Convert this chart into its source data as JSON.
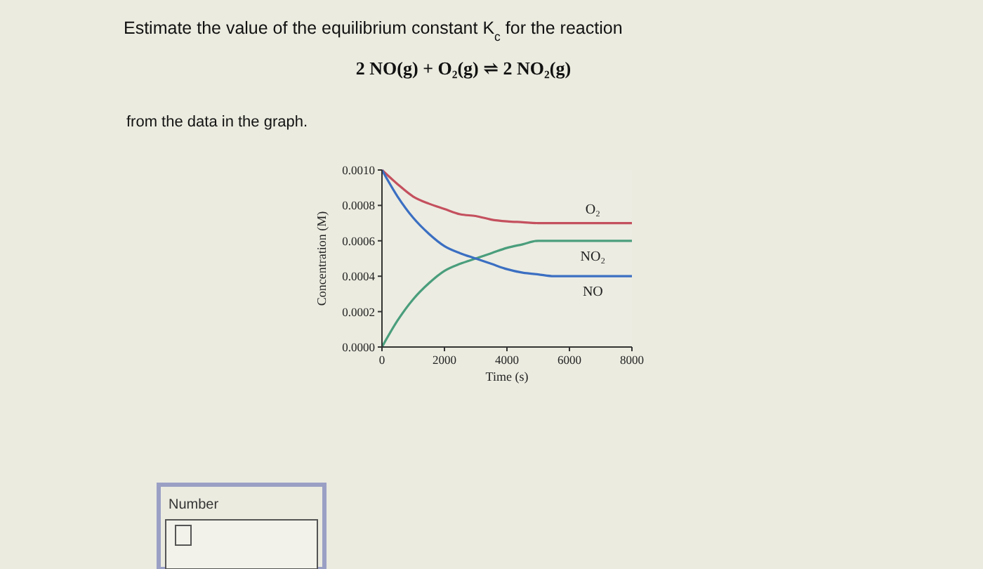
{
  "chart_data": {
    "type": "line",
    "title": "Estimate the value of the equilibrium constant K$_{c}$ for the reaction",
    "subtitle": "2 NO(g) + O₂(g) ⇌ 2 NO₂(g)",
    "xlabel": "Time (s)",
    "ylabel": "Concentration (M)",
    "x": [
      0,
      500,
      1000,
      1500,
      2000,
      2500,
      3000,
      3500,
      4000,
      4500,
      5000,
      5500,
      6000,
      7000,
      8000
    ],
    "series": [
      {
        "name": "O₂",
        "color": "#c4505e",
        "values": [
          0.001,
          0.00092,
          0.00085,
          0.00081,
          0.00078,
          0.00075,
          0.00074,
          0.00072,
          0.00071,
          0.000705,
          0.0007,
          0.0007,
          0.0007,
          0.0007,
          0.0007
        ]
      },
      {
        "name": "NO₂",
        "color": "#4a9e7c",
        "values": [
          0,
          0.00015,
          0.00027,
          0.00036,
          0.00043,
          0.00047,
          0.0005,
          0.00053,
          0.00056,
          0.00058,
          0.0006,
          0.0006,
          0.0006,
          0.0006,
          0.0006
        ]
      },
      {
        "name": "NO",
        "color": "#3b6fc2",
        "values": [
          0.001,
          0.00085,
          0.00073,
          0.00064,
          0.00057,
          0.00053,
          0.0005,
          0.00047,
          0.00044,
          0.00042,
          0.00041,
          0.0004,
          0.0004,
          0.0004,
          0.0004
        ]
      }
    ],
    "xlim": [
      0,
      8000
    ],
    "xticks": [
      0,
      2000,
      4000,
      6000,
      8000
    ],
    "ylim": [
      0,
      0.001
    ],
    "yticks": [
      {
        "value": 0,
        "label": "0.0000"
      },
      {
        "value": 0.0002,
        "label": "0.0002"
      },
      {
        "value": 0.0004,
        "label": "0.0004"
      },
      {
        "value": 0.0006,
        "label": "0.0006"
      },
      {
        "value": 0.0008,
        "label": "0.0008"
      },
      {
        "value": 0.001,
        "label": "0.0010"
      }
    ],
    "grid": false,
    "marker": "none",
    "line_style": "solid",
    "annotations": [
      "from the data in the graph.",
      "Number"
    ]
  }
}
